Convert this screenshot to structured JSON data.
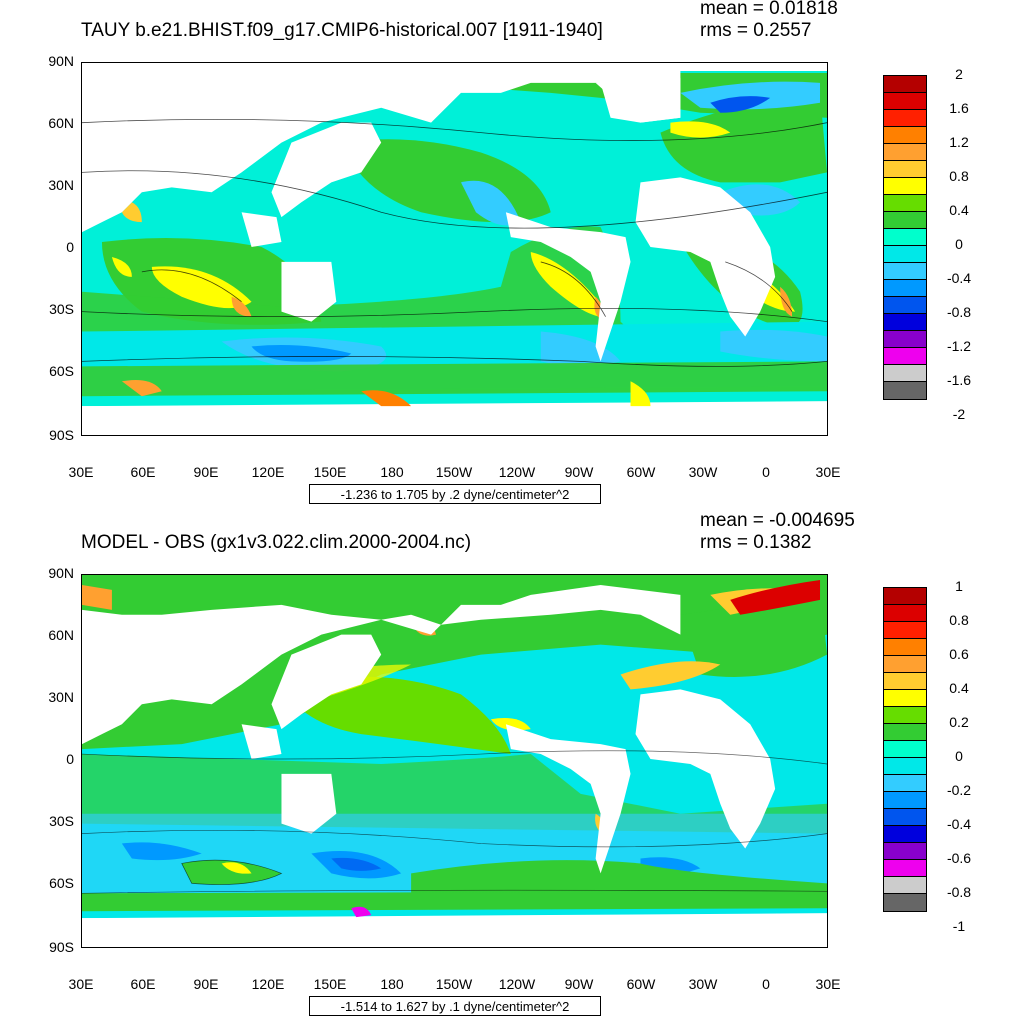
{
  "panels": [
    {
      "title": "TAUY b.e21.BHIST.f09_g17.CMIP6-historical.007 [1911-1940]",
      "mean": "mean = 0.01818",
      "rms": "rms = 0.2557",
      "range": "-1.236 to 1.705 by .2 dyne/centimeter^2",
      "colorbar_labels": [
        "2",
        "1.6",
        "1.2",
        "0.8",
        "0.4",
        "0",
        "-0.4",
        "-0.8",
        "-1.2",
        "-1.6",
        "-2"
      ],
      "colorbar_colors": [
        "#b40000",
        "#dc0000",
        "#ff2000",
        "#ff8000",
        "#ffa030",
        "#ffcc30",
        "#ffff00",
        "#66dd00",
        "#33cc33",
        "#00ffcc",
        "#00e8e8",
        "#33ccff",
        "#0099ff",
        "#0055ee",
        "#0000dd",
        "#8800cc",
        "#ee00ee",
        "#cccccc",
        "#666666"
      ]
    },
    {
      "title": "MODEL - OBS (gx1v3.022.clim.2000-2004.nc)",
      "mean": "mean = -0.004695",
      "rms": "rms = 0.1382",
      "range": "-1.514 to 1.627 by .1 dyne/centimeter^2",
      "colorbar_labels": [
        "1",
        "0.8",
        "0.6",
        "0.4",
        "0.2",
        "0",
        "-0.2",
        "-0.4",
        "-0.6",
        "-0.8",
        "-1"
      ],
      "colorbar_colors": [
        "#b40000",
        "#dc0000",
        "#ff2000",
        "#ff8000",
        "#ffa030",
        "#ffcc30",
        "#ffff00",
        "#66dd00",
        "#33cc33",
        "#00ffcc",
        "#00e8e8",
        "#33ccff",
        "#0099ff",
        "#0055ee",
        "#0000dd",
        "#8800cc",
        "#ee00ee",
        "#cccccc",
        "#666666"
      ]
    }
  ],
  "axes": {
    "y_labels": [
      "90N",
      "60N",
      "30N",
      "0",
      "30S",
      "60S",
      "90S"
    ],
    "x_labels": [
      "30E",
      "60E",
      "90E",
      "120E",
      "150E",
      "180",
      "150W",
      "120W",
      "90W",
      "60W",
      "30W",
      "0",
      "30E"
    ]
  },
  "colors": {
    "ocean_base_top": "#00f0d8",
    "ocean_base_bottom": "#00e4e4",
    "land": "#ffffff"
  }
}
